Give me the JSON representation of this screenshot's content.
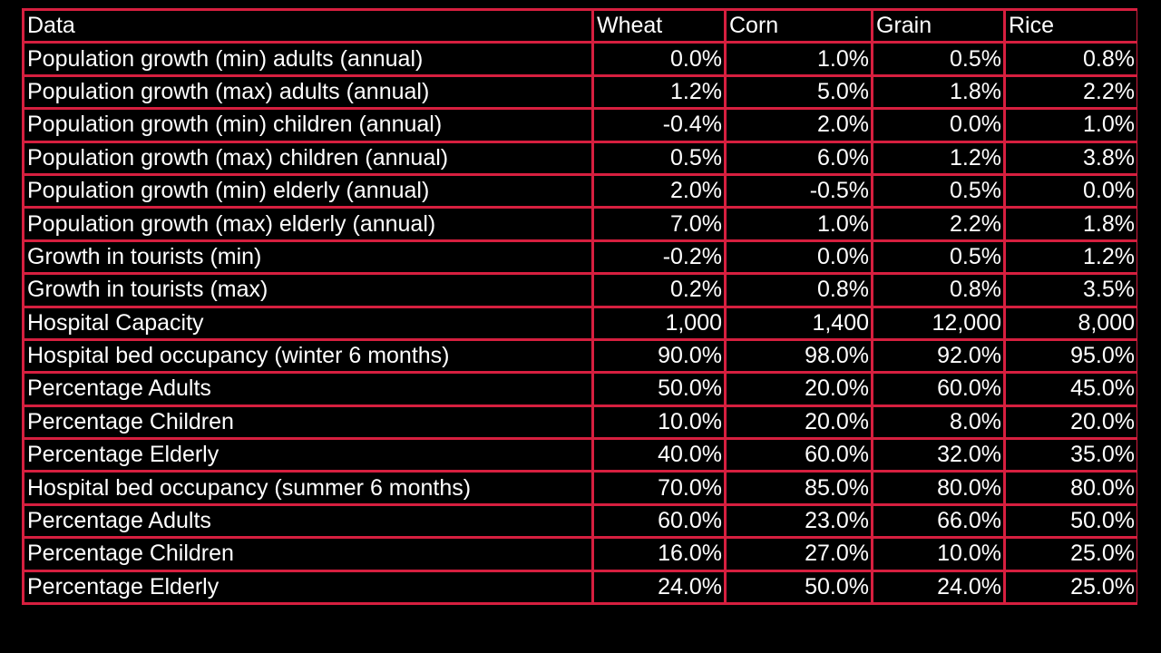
{
  "table": {
    "headers": [
      "Data",
      "Wheat",
      "Corn",
      "Grain",
      "Rice"
    ],
    "rows": [
      [
        "Population growth (min) adults (annual)",
        "0.0%",
        "1.0%",
        "0.5%",
        "0.8%"
      ],
      [
        "Population growth (max) adults (annual)",
        "1.2%",
        "5.0%",
        "1.8%",
        "2.2%"
      ],
      [
        "Population growth (min) children (annual)",
        "-0.4%",
        "2.0%",
        "0.0%",
        "1.0%"
      ],
      [
        "Population growth (max) children (annual)",
        "0.5%",
        "6.0%",
        "1.2%",
        "3.8%"
      ],
      [
        "Population growth (min) elderly (annual)",
        "2.0%",
        "-0.5%",
        "0.5%",
        "0.0%"
      ],
      [
        "Population growth (max) elderly (annual)",
        "7.0%",
        "1.0%",
        "2.2%",
        "1.8%"
      ],
      [
        "Growth in tourists (min)",
        "-0.2%",
        "0.0%",
        "0.5%",
        "1.2%"
      ],
      [
        "Growth in tourists (max)",
        "0.2%",
        "0.8%",
        "0.8%",
        "3.5%"
      ],
      [
        "Hospital Capacity",
        "1,000",
        "1,400",
        "12,000",
        "8,000"
      ],
      [
        "Hospital bed occupancy (winter 6 months)",
        "90.0%",
        "98.0%",
        "92.0%",
        "95.0%"
      ],
      [
        "Percentage Adults",
        "50.0%",
        "20.0%",
        "60.0%",
        "45.0%"
      ],
      [
        "Percentage Children",
        "10.0%",
        "20.0%",
        "8.0%",
        "20.0%"
      ],
      [
        "Percentage Elderly",
        "40.0%",
        "60.0%",
        "32.0%",
        "35.0%"
      ],
      [
        "Hospital bed occupancy (summer 6 months)",
        "70.0%",
        "85.0%",
        "80.0%",
        "80.0%"
      ],
      [
        "Percentage Adults",
        "60.0%",
        "23.0%",
        "66.0%",
        "50.0%"
      ],
      [
        "Percentage Children",
        "16.0%",
        "27.0%",
        "10.0%",
        "25.0%"
      ],
      [
        "Percentage Elderly",
        "24.0%",
        "50.0%",
        "24.0%",
        "25.0%"
      ]
    ]
  },
  "colors": {
    "background": "#000000",
    "grid": "#d61f3f",
    "text": "#ffffff"
  }
}
